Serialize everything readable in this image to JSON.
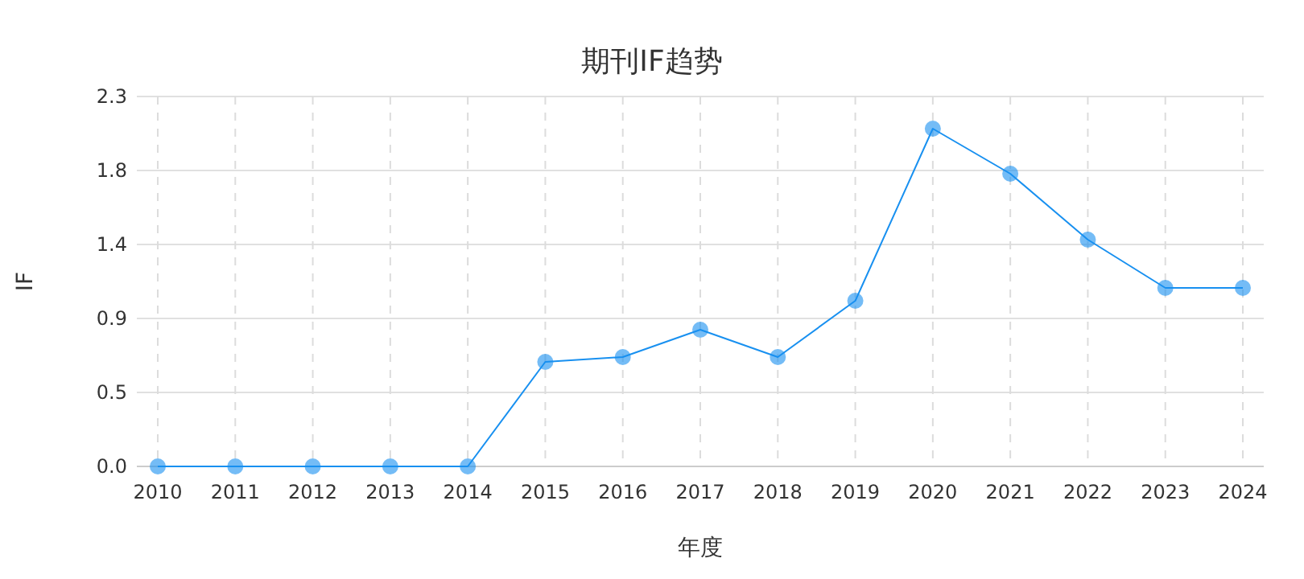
{
  "chart_data": {
    "type": "line",
    "title": "期刊IF趋势",
    "xlabel": "年度",
    "ylabel": "IF",
    "categories": [
      "2010",
      "2011",
      "2012",
      "2013",
      "2014",
      "2015",
      "2016",
      "2017",
      "2018",
      "2019",
      "2020",
      "2021",
      "2022",
      "2023",
      "2024"
    ],
    "series": [
      {
        "color": "#1890f0",
        "values": [
          0,
          0,
          0,
          0,
          0,
          0.65,
          0.68,
          0.85,
          0.68,
          1.03,
          2.1,
          1.82,
          1.41,
          1.11,
          1.11
        ]
      }
    ],
    "ylim": [
      0,
      2.3
    ],
    "yticks": [
      {
        "value": 0,
        "label": "0.0"
      },
      {
        "value": 0.46,
        "label": "0.5"
      },
      {
        "value": 0.92,
        "label": "0.9"
      },
      {
        "value": 1.38,
        "label": "1.4"
      },
      {
        "value": 1.84,
        "label": "1.8"
      },
      {
        "value": 2.3,
        "label": "2.3"
      }
    ],
    "grid": true,
    "marker": "circle",
    "line_style": "solid"
  }
}
